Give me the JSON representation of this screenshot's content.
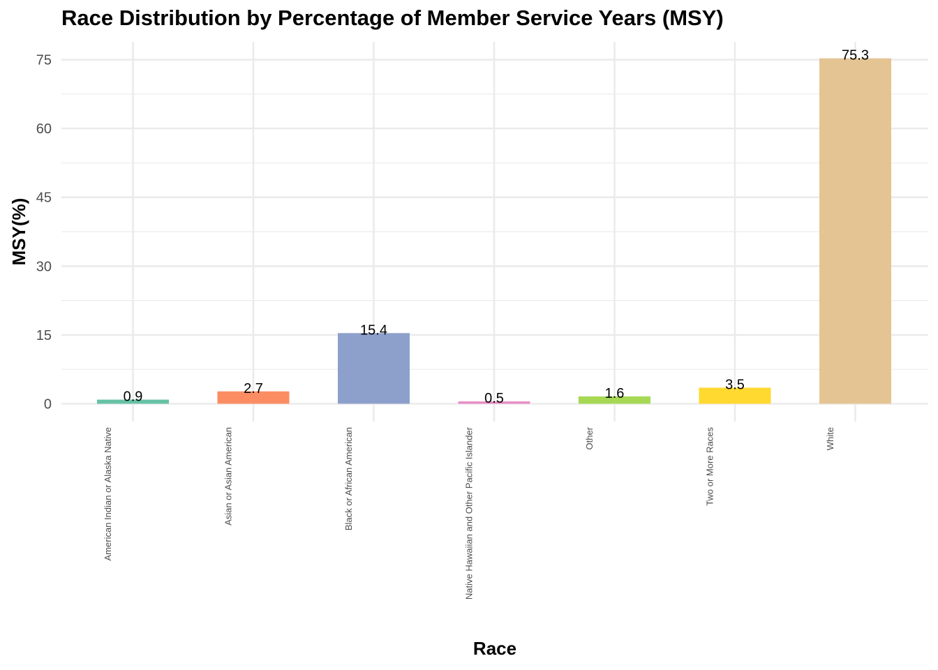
{
  "chart_data": {
    "type": "bar",
    "title": "Race Distribution by Percentage of Member Service Years (MSY)",
    "xlabel": "Race",
    "ylabel": "MSY(%)",
    "categories": [
      "American Indian or Alaska Native",
      "Asian or Asian American",
      "Black or African American",
      "Native Hawaiian and Other Pacific Islander",
      "Other",
      "Two or More Races",
      "White"
    ],
    "values": [
      0.9,
      2.7,
      15.4,
      0.5,
      1.6,
      3.5,
      75.3
    ],
    "data_labels": [
      "0.9",
      "2.7",
      "15.4",
      "0.5",
      "1.6",
      "3.5",
      "75.3"
    ],
    "colors": [
      "#66C2A5",
      "#FC8D62",
      "#8DA0CB",
      "#E78AC3",
      "#A6D854",
      "#FFD92F",
      "#E5C494"
    ],
    "yticks": [
      0,
      15,
      30,
      45,
      60,
      75
    ],
    "ytick_labels": [
      "0",
      "15",
      "30",
      "45",
      "60",
      "75"
    ],
    "ylim": [
      -3.8,
      79
    ],
    "grid": true,
    "legend": "none"
  }
}
